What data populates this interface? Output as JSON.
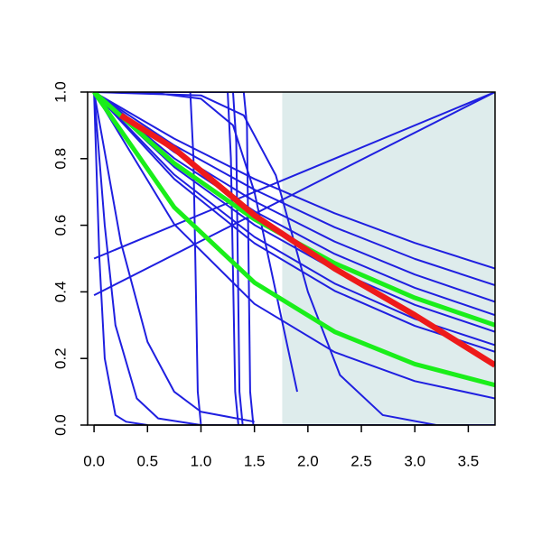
{
  "chart_data": {
    "type": "line",
    "xlim": [
      -0.06,
      3.75
    ],
    "ylim": [
      0,
      1
    ],
    "xticks": [
      {
        "value": 0,
        "label": "0.0"
      },
      {
        "value": 0.5,
        "label": "0.5"
      },
      {
        "value": 1,
        "label": "1.0"
      },
      {
        "value": 1.5,
        "label": "1.5"
      },
      {
        "value": 2,
        "label": "2.0"
      },
      {
        "value": 2.5,
        "label": "2.5"
      },
      {
        "value": 3,
        "label": "3.0"
      },
      {
        "value": 3.5,
        "label": "3.5"
      }
    ],
    "yticks": [
      {
        "value": 0,
        "label": "0.0"
      },
      {
        "value": 0.2,
        "label": "0.2"
      },
      {
        "value": 0.4,
        "label": "0.4"
      },
      {
        "value": 0.6,
        "label": "0.6"
      },
      {
        "value": 0.8,
        "label": "0.8"
      },
      {
        "value": 1,
        "label": "1.0"
      }
    ],
    "shade_x": [
      1.76,
      3.75
    ],
    "shade_color": "#deecec",
    "series": [
      {
        "color": "#1f1fe0",
        "x": [
          0,
          0.75,
          1.5,
          2.25,
          3,
          3.75
        ],
        "values": [
          1,
          0.86,
          0.739,
          0.636,
          0.547,
          0.47
        ]
      },
      {
        "color": "#1f1fe0",
        "x": [
          0,
          0.75,
          1.5,
          2.25,
          3,
          3.75
        ],
        "values": [
          1,
          0.84,
          0.707,
          0.594,
          0.499,
          0.42
        ]
      },
      {
        "color": "#1f1fe0",
        "x": [
          0,
          0.75,
          1.5,
          2.25,
          3,
          3.75
        ],
        "values": [
          1,
          0.82,
          0.672,
          0.551,
          0.452,
          0.37
        ]
      },
      {
        "color": "#1f1fe0",
        "x": [
          0,
          0.75,
          1.5,
          2.25,
          3,
          3.75
        ],
        "values": [
          1,
          0.801,
          0.642,
          0.514,
          0.412,
          0.33
        ]
      },
      {
        "color": "#1f1fe0",
        "x": [
          0,
          0.75,
          1.5,
          2.25,
          3,
          3.75
        ],
        "values": [
          1,
          0.775,
          0.601,
          0.466,
          0.361,
          0.28
        ]
      },
      {
        "color": "#1f1fe0",
        "x": [
          0,
          0.75,
          1.5,
          2.25,
          3,
          3.75
        ],
        "values": [
          1,
          0.752,
          0.565,
          0.425,
          0.319,
          0.24
        ]
      },
      {
        "color": "#1f1fe0",
        "x": [
          0,
          0.75,
          1.5,
          2.25,
          3,
          3.75
        ],
        "values": [
          1,
          0.739,
          0.546,
          0.403,
          0.298,
          0.22
        ]
      },
      {
        "color": "#1f1fe0",
        "x": [
          0,
          0.75,
          1.5,
          2.25,
          3,
          3.75
        ],
        "values": [
          1,
          0.603,
          0.364,
          0.219,
          0.132,
          0.08
        ]
      },
      {
        "color": "#1f1fe0",
        "x": [
          0,
          0.9,
          0.93,
          0.97,
          1.0,
          3.75
        ],
        "values": [
          1,
          1,
          0.8,
          0.1,
          0,
          0
        ]
      },
      {
        "color": "#1f1fe0",
        "x": [
          0,
          1.25,
          1.28,
          1.32,
          1.35,
          3.75
        ],
        "values": [
          1,
          1,
          0.8,
          0.1,
          0,
          0
        ]
      },
      {
        "color": "#1f1fe0",
        "x": [
          0,
          1.3,
          1.33,
          1.36,
          1.39,
          3.75
        ],
        "values": [
          1,
          1,
          0.85,
          0.1,
          0,
          0
        ]
      },
      {
        "color": "#1f1fe0",
        "x": [
          0,
          1.4,
          1.43,
          1.46,
          1.49,
          3.75
        ],
        "values": [
          1,
          1,
          0.9,
          0.1,
          0,
          0
        ]
      },
      {
        "color": "#1f1fe0",
        "x": [
          0,
          1,
          1.4,
          1.7,
          2,
          2.3,
          2.7,
          3.2
        ],
        "values": [
          1,
          0.99,
          0.93,
          0.75,
          0.4,
          0.15,
          0.03,
          0
        ]
      },
      {
        "color": "#1f1fe0",
        "x": [
          0,
          0.5,
          1,
          1.3,
          1.5,
          1.7,
          1.9
        ],
        "values": [
          1,
          1,
          0.98,
          0.9,
          0.7,
          0.4,
          0.1
        ]
      },
      {
        "color": "#1f1fe0",
        "x": [
          0,
          0.05,
          0.1,
          0.2,
          0.3,
          0.5
        ],
        "values": [
          1,
          0.5,
          0.2,
          0.03,
          0.01,
          0
        ]
      },
      {
        "color": "#1f1fe0",
        "x": [
          0,
          0.1,
          0.2,
          0.4,
          0.6,
          1
        ],
        "values": [
          1,
          0.6,
          0.3,
          0.08,
          0.02,
          0
        ]
      },
      {
        "color": "#1f1fe0",
        "x": [
          0,
          0.25,
          0.5,
          0.75,
          1,
          1.5
        ],
        "values": [
          1,
          0.55,
          0.25,
          0.1,
          0.04,
          0.01
        ]
      },
      {
        "color": "#1f1fe0",
        "x": [
          0,
          3.75
        ],
        "values": [
          0.5,
          1
        ]
      },
      {
        "color": "#1f1fe0",
        "x": [
          0,
          3.75
        ],
        "values": [
          0.39,
          1
        ]
      },
      {
        "color": "#1aee1a",
        "x": [
          0,
          0.75,
          1.5,
          2.25,
          3,
          3.75
        ],
        "values": [
          1,
          0.786,
          0.618,
          0.486,
          0.382,
          0.3
        ]
      },
      {
        "color": "#1aee1a",
        "x": [
          0,
          0.75,
          1.5,
          2.25,
          3,
          3.75
        ],
        "values": [
          1,
          0.654,
          0.428,
          0.28,
          0.183,
          0.12
        ]
      },
      {
        "color": "#ee1a1a",
        "x": [
          0.25,
          0.75,
          1.5,
          2.25,
          3,
          3.75
        ],
        "values": [
          0.93,
          0.83,
          0.63,
          0.47,
          0.33,
          0.18
        ]
      }
    ]
  }
}
